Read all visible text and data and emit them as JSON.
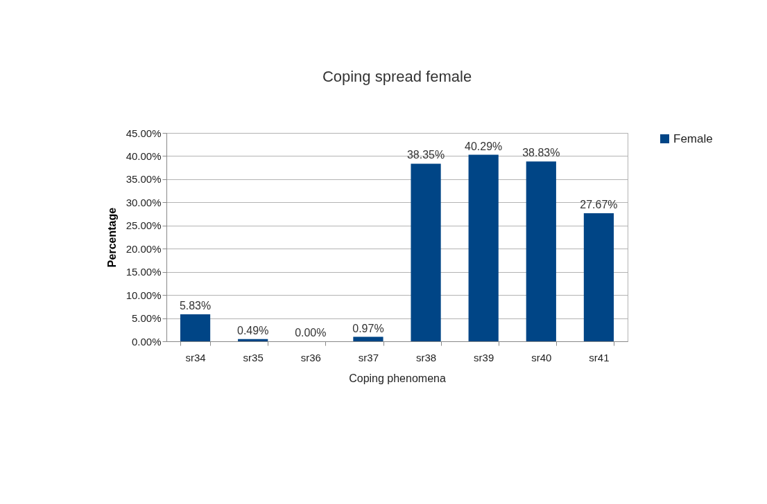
{
  "chart_data": {
    "type": "bar",
    "title": "Coping spread female",
    "xlabel": "Coping phenomena",
    "ylabel": "Percentage",
    "categories": [
      "sr34",
      "sr35",
      "sr36",
      "sr37",
      "sr38",
      "sr39",
      "sr40",
      "sr41"
    ],
    "series": [
      {
        "name": "Female",
        "color": "#004586",
        "values": [
          5.83,
          0.49,
          0,
          0.97,
          38.35,
          40.29,
          38.83,
          27.67
        ],
        "value_labels": [
          "5.83%",
          "0.49%",
          "0.00%",
          "0.97%",
          "38.35%",
          "40.29%",
          "38.83%",
          "27.67%"
        ]
      }
    ],
    "ylim": [
      0,
      45
    ],
    "yticks": [
      {
        "value": 0,
        "label": "0.00%"
      },
      {
        "value": 5,
        "label": "5.00%"
      },
      {
        "value": 10,
        "label": "10.00%"
      },
      {
        "value": 15,
        "label": "15.00%"
      },
      {
        "value": 20,
        "label": "20.00%"
      },
      {
        "value": 25,
        "label": "25.00%"
      },
      {
        "value": 30,
        "label": "30.00%"
      },
      {
        "value": 35,
        "label": "35.00%"
      },
      {
        "value": 40,
        "label": "40.00%"
      },
      {
        "value": 45,
        "label": "45.00%"
      }
    ],
    "grid": "y",
    "legend": "right"
  }
}
